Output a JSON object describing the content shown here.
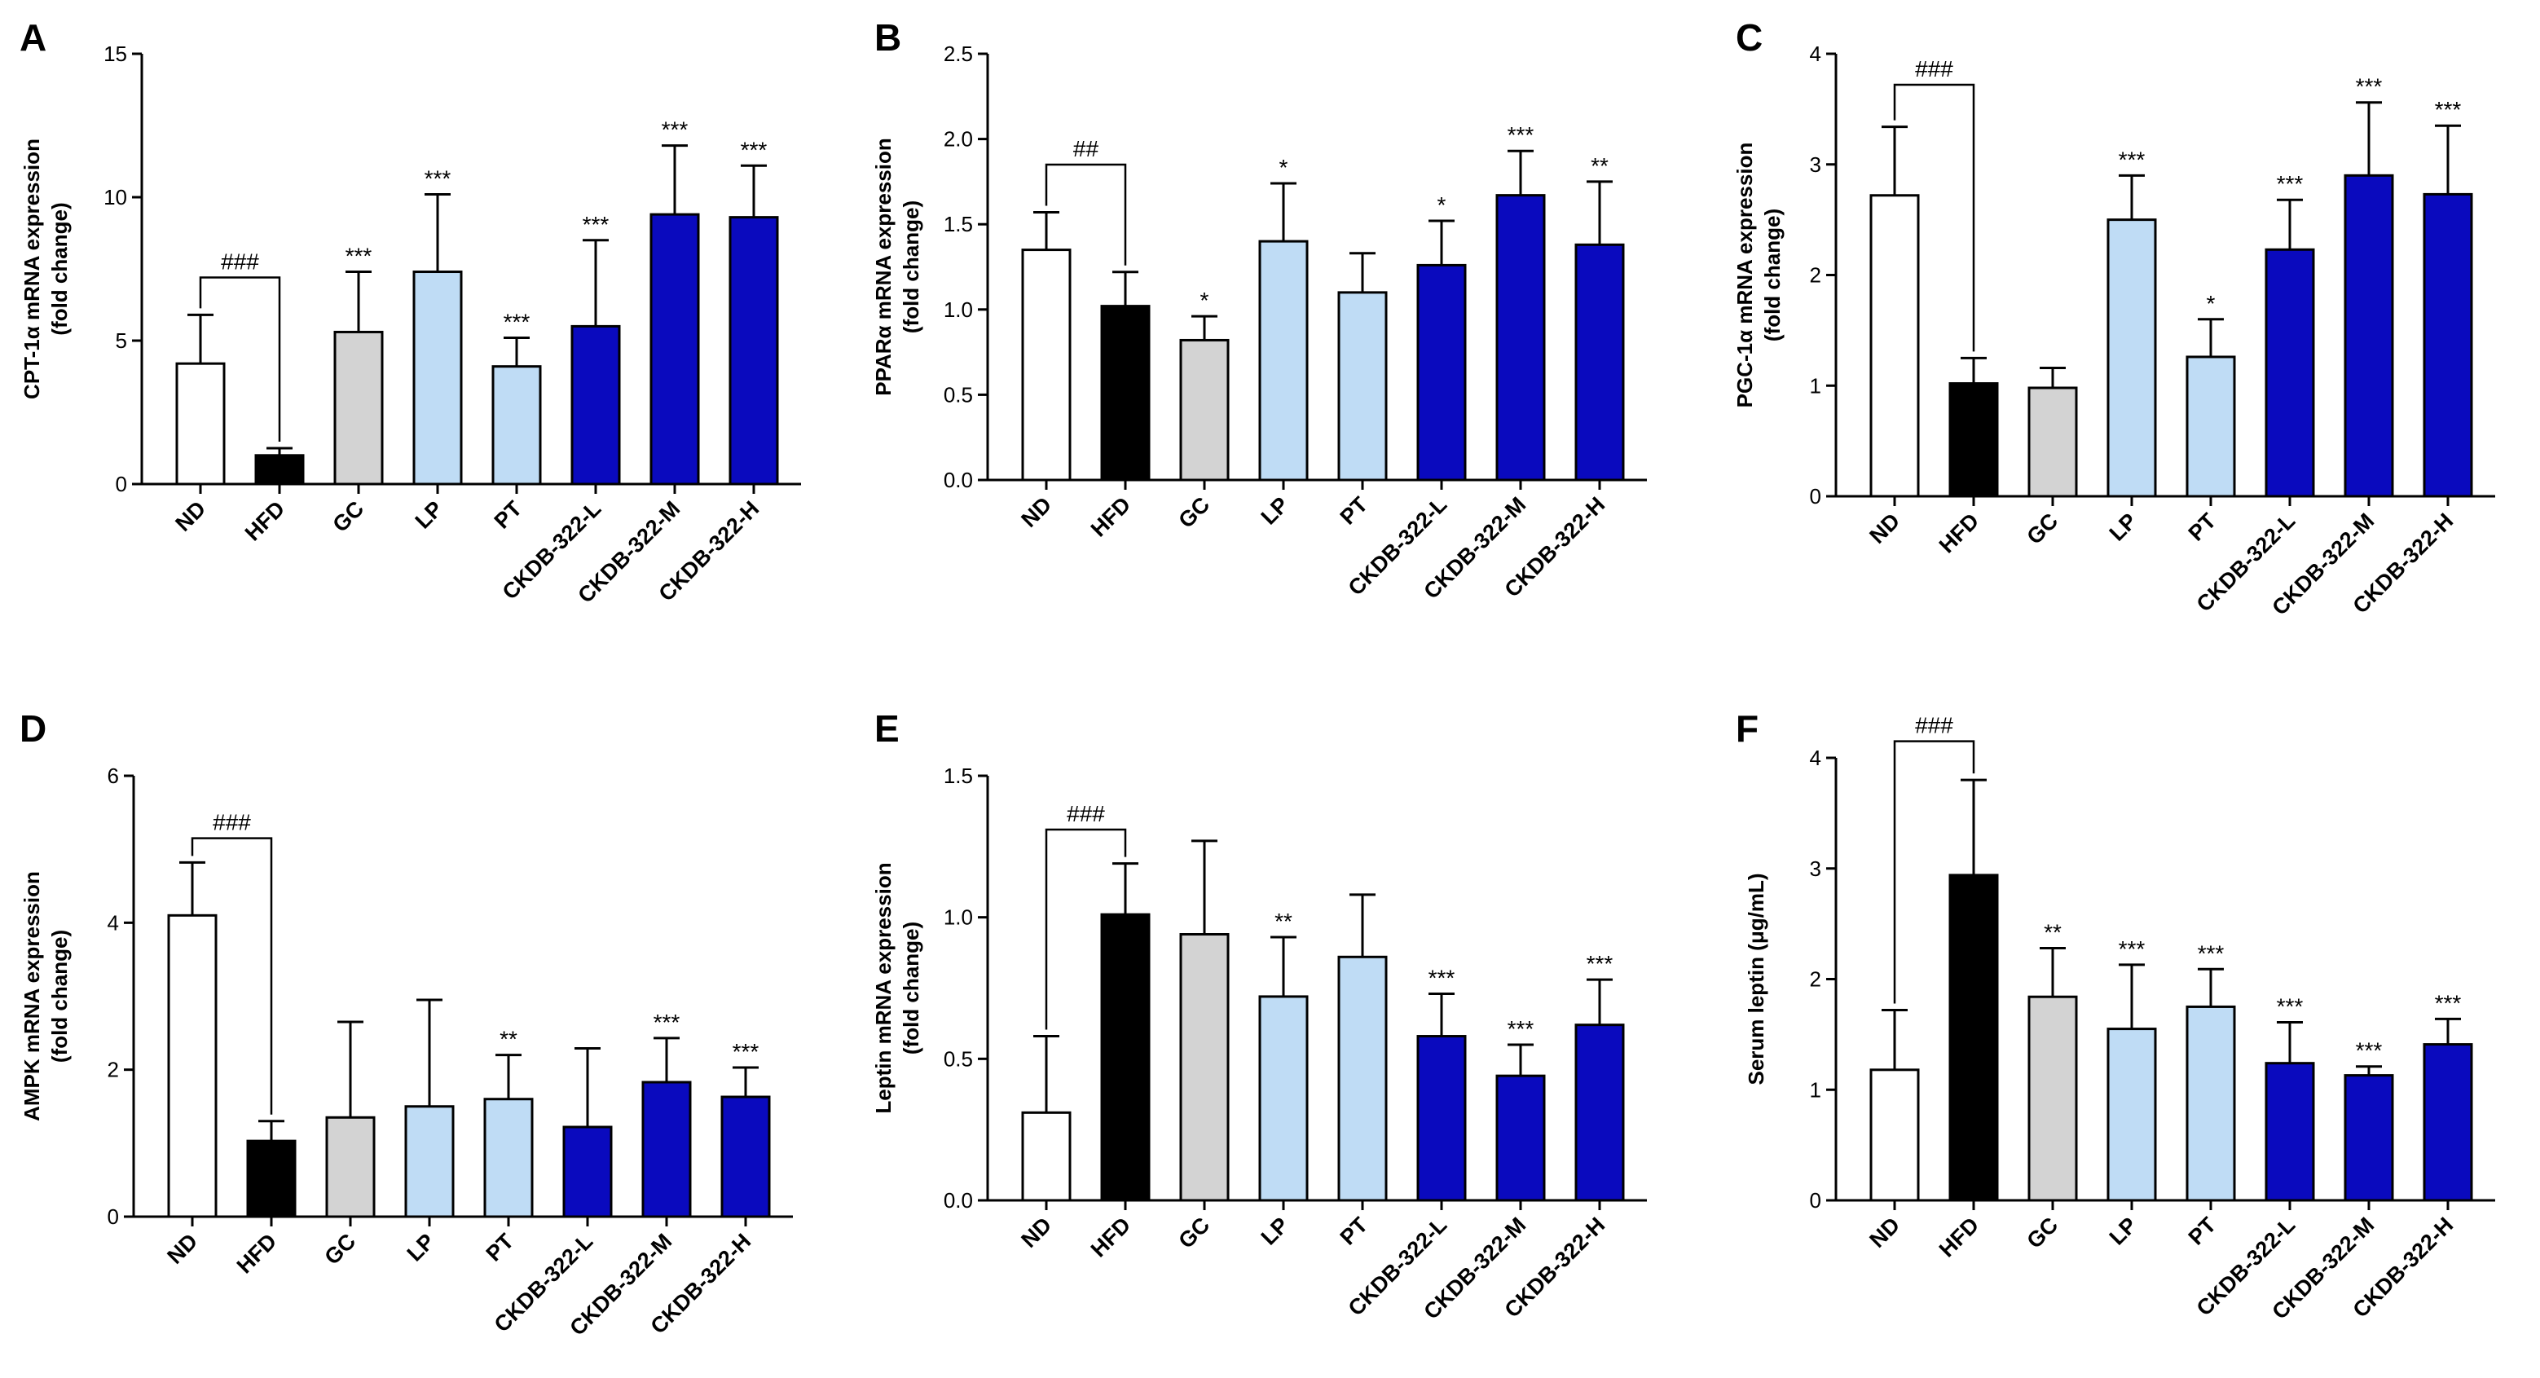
{
  "colors": {
    "ND": "#ffffff",
    "HFD": "#000000",
    "GC": "#d3d3d3",
    "LP": "#bfdcf5",
    "PT": "#bfdcf5",
    "CKDB-322-L": "#0a0abe",
    "CKDB-322-M": "#0a0abe",
    "CKDB-322-H": "#0a0abe"
  },
  "chart_data": [
    {
      "id": "A",
      "letter": "A",
      "type": "bar",
      "ylabel_line1": "CPT-1α mRNA expression",
      "ylabel_line2": "(fold change)",
      "ylim": [
        0,
        15
      ],
      "yticks": [
        0,
        5,
        10,
        15
      ],
      "categories": [
        "ND",
        "HFD",
        "GC",
        "LP",
        "PT",
        "CKDB-322-L",
        "CKDB-322-M",
        "CKDB-322-H"
      ],
      "values": [
        4.2,
        1.0,
        5.3,
        7.4,
        4.1,
        5.5,
        9.4,
        9.3
      ],
      "errors": [
        1.7,
        0.25,
        2.1,
        2.7,
        1.0,
        3.0,
        2.4,
        1.8
      ],
      "sig": [
        "",
        "",
        "***",
        "***",
        "***",
        "***",
        "***",
        "***"
      ],
      "bracket": {
        "from": 0,
        "to": 1,
        "label": "###",
        "level": 7.2
      }
    },
    {
      "id": "B",
      "letter": "B",
      "type": "bar",
      "ylabel_line1": "PPARα mRNA expression",
      "ylabel_line2": "(fold change)",
      "ylim": [
        0,
        2.5
      ],
      "yticks": [
        0.0,
        0.5,
        1.0,
        1.5,
        2.0,
        2.5
      ],
      "tick_decimals": 1,
      "categories": [
        "ND",
        "HFD",
        "GC",
        "LP",
        "PT",
        "CKDB-322-L",
        "CKDB-322-M",
        "CKDB-322-H"
      ],
      "values": [
        1.35,
        1.02,
        0.82,
        1.4,
        1.1,
        1.26,
        1.67,
        1.38
      ],
      "errors": [
        0.22,
        0.2,
        0.14,
        0.34,
        0.23,
        0.26,
        0.26,
        0.37
      ],
      "sig": [
        "",
        "",
        "*",
        "*",
        "",
        "*",
        "***",
        "**"
      ],
      "bracket": {
        "from": 0,
        "to": 1,
        "label": "##",
        "level": 1.85
      }
    },
    {
      "id": "C",
      "letter": "C",
      "type": "bar",
      "ylabel_line1": "PGC-1α mRNA expression",
      "ylabel_line2": "(fold change)",
      "ylim": [
        0,
        4
      ],
      "yticks": [
        0,
        1,
        2,
        3,
        4
      ],
      "categories": [
        "ND",
        "HFD",
        "GC",
        "LP",
        "PT",
        "CKDB-322-L",
        "CKDB-322-M",
        "CKDB-322-H"
      ],
      "values": [
        2.72,
        1.02,
        0.98,
        2.5,
        1.26,
        2.23,
        2.9,
        2.73
      ],
      "errors": [
        0.62,
        0.23,
        0.18,
        0.4,
        0.34,
        0.45,
        0.66,
        0.62
      ],
      "sig": [
        "",
        "",
        "",
        "***",
        "*",
        "***",
        "***",
        "***"
      ],
      "bracket": {
        "from": 0,
        "to": 1,
        "label": "###",
        "level": 3.72
      }
    },
    {
      "id": "D",
      "letter": "D",
      "type": "bar",
      "ylabel_line1": "AMPK mRNA expression",
      "ylabel_line2": "(fold change)",
      "ylim": [
        0,
        6
      ],
      "yticks": [
        0,
        2,
        4,
        6
      ],
      "categories": [
        "ND",
        "HFD",
        "GC",
        "LP",
        "PT",
        "CKDB-322-L",
        "CKDB-322-M",
        "CKDB-322-H"
      ],
      "values": [
        4.1,
        1.03,
        1.35,
        1.5,
        1.6,
        1.22,
        1.83,
        1.63
      ],
      "errors": [
        0.72,
        0.27,
        1.3,
        1.45,
        0.6,
        1.07,
        0.6,
        0.4
      ],
      "sig": [
        "",
        "",
        "",
        "",
        "**",
        "",
        "***",
        "***"
      ],
      "bracket": {
        "from": 0,
        "to": 1,
        "label": "###",
        "level": 5.15
      }
    },
    {
      "id": "E",
      "letter": "E",
      "type": "bar",
      "ylabel_line1": "Leptin mRNA expression",
      "ylabel_line2": "(fold change)",
      "ylim": [
        0,
        1.5
      ],
      "yticks": [
        0.0,
        0.5,
        1.0,
        1.5
      ],
      "tick_decimals": 1,
      "categories": [
        "ND",
        "HFD",
        "GC",
        "LP",
        "PT",
        "CKDB-322-L",
        "CKDB-322-M",
        "CKDB-322-H"
      ],
      "values": [
        0.31,
        1.01,
        0.94,
        0.72,
        0.86,
        0.58,
        0.44,
        0.62
      ],
      "errors": [
        0.27,
        0.18,
        0.33,
        0.21,
        0.22,
        0.15,
        0.11,
        0.16
      ],
      "sig": [
        "",
        "",
        "",
        "**",
        "",
        "***",
        "***",
        "***"
      ],
      "bracket": {
        "from": 0,
        "to": 1,
        "label": "###",
        "level": 1.31
      }
    },
    {
      "id": "F",
      "letter": "F",
      "type": "bar",
      "ylabel_line1": "Serum leptin (μg/mL)",
      "ylabel_line2": "",
      "ylim": [
        0,
        4
      ],
      "yticks": [
        0,
        1,
        2,
        3,
        4
      ],
      "categories": [
        "ND",
        "HFD",
        "GC",
        "LP",
        "PT",
        "CKDB-322-L",
        "CKDB-322-M",
        "CKDB-322-H"
      ],
      "values": [
        1.18,
        2.94,
        1.84,
        1.55,
        1.75,
        1.24,
        1.13,
        1.41
      ],
      "errors": [
        0.54,
        0.86,
        0.44,
        0.58,
        0.34,
        0.37,
        0.08,
        0.23
      ],
      "sig": [
        "",
        "",
        "**",
        "***",
        "***",
        "***",
        "***",
        "***"
      ],
      "bracket": {
        "from": 0,
        "to": 1,
        "label": "###",
        "level": 4.15
      }
    }
  ]
}
